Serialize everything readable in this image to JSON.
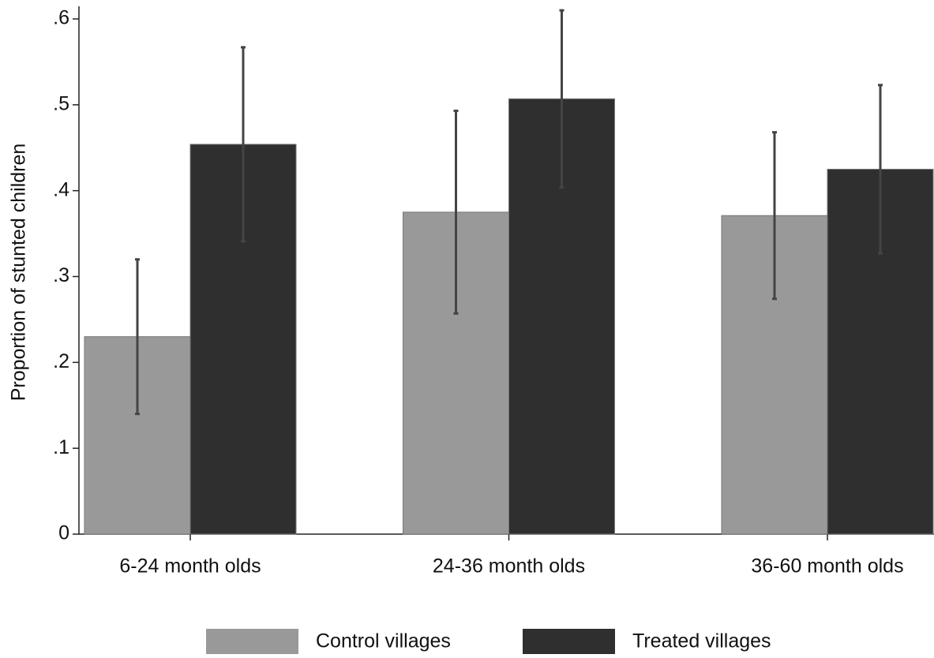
{
  "chart_data": {
    "type": "bar",
    "y_label": "Proportion of stunted children",
    "categories": [
      "6-24 month olds",
      "24-36 month olds",
      "36-60 month olds"
    ],
    "series": [
      {
        "name": "Control villages",
        "color": "#999999",
        "values": [
          0.23,
          0.375,
          0.371
        ],
        "errors": [
          0.09,
          0.118,
          0.097
        ]
      },
      {
        "name": "Treated villages",
        "color": "#2f2f2f",
        "values": [
          0.454,
          0.507,
          0.425
        ],
        "errors": [
          0.113,
          0.103,
          0.098
        ]
      }
    ],
    "ylim": [
      0,
      0.6
    ],
    "yticks": [
      0,
      {
        "value": 0.1,
        "label": ".1"
      },
      {
        "value": 0.2,
        "label": ".2"
      },
      {
        "value": 0.3,
        "label": ".3"
      },
      {
        "value": 0.4,
        "label": ".4"
      },
      {
        "value": 0.5,
        "label": ".5"
      },
      {
        "value": 0.6,
        "label": ".6"
      }
    ],
    "grid": false,
    "legend": "bottom"
  }
}
